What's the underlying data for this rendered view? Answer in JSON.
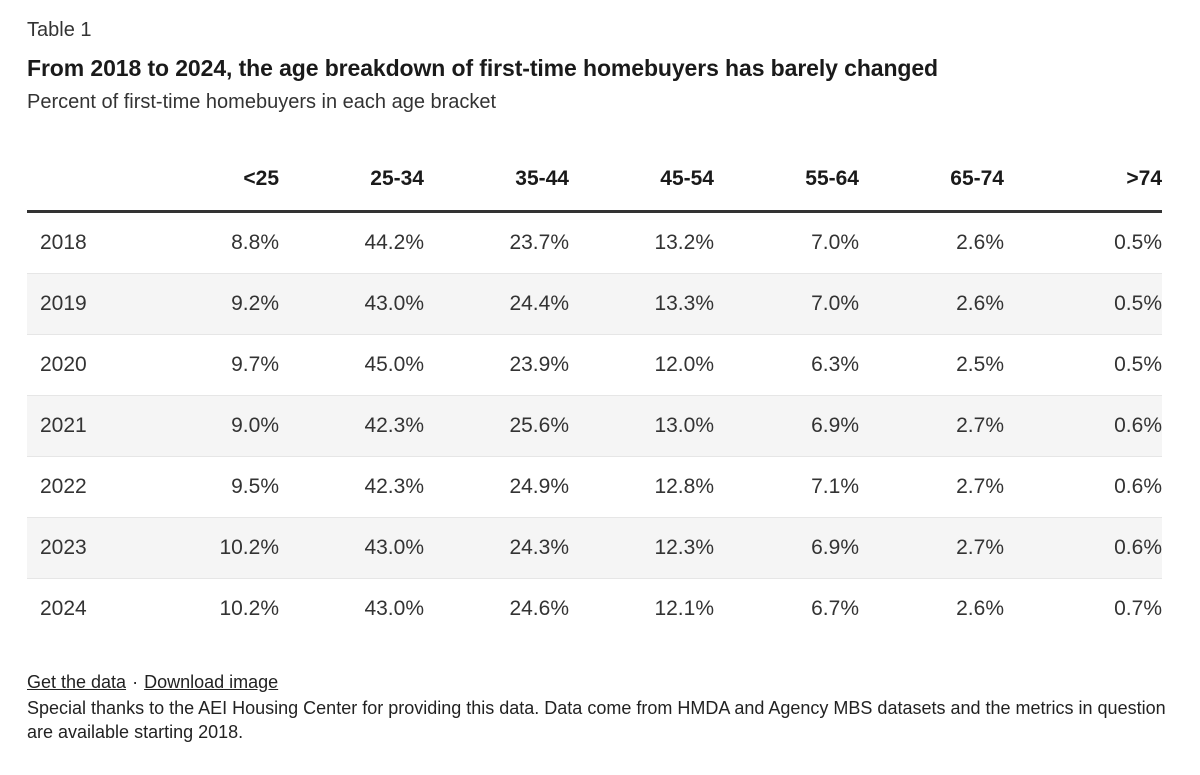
{
  "header": {
    "kicker": "Table 1",
    "title": "From 2018 to 2024, the age breakdown of first-time homebuyers has barely changed",
    "subtitle": "Percent of first-time homebuyers in each age bracket"
  },
  "chart_data": {
    "type": "table",
    "title": "From 2018 to 2024, the age breakdown of first-time homebuyers has barely changed",
    "subtitle": "Percent of first-time homebuyers in each age bracket",
    "columns": [
      "",
      "<25",
      "25-34",
      "35-44",
      "45-54",
      "55-64",
      "65-74",
      ">74"
    ],
    "rows": [
      [
        "2018",
        "8.8%",
        "44.2%",
        "23.7%",
        "13.2%",
        "7.0%",
        "2.6%",
        "0.5%"
      ],
      [
        "2019",
        "9.2%",
        "43.0%",
        "24.4%",
        "13.3%",
        "7.0%",
        "2.6%",
        "0.5%"
      ],
      [
        "2020",
        "9.7%",
        "45.0%",
        "23.9%",
        "12.0%",
        "6.3%",
        "2.5%",
        "0.5%"
      ],
      [
        "2021",
        "9.0%",
        "42.3%",
        "25.6%",
        "13.0%",
        "6.9%",
        "2.7%",
        "0.6%"
      ],
      [
        "2022",
        "9.5%",
        "42.3%",
        "24.9%",
        "12.8%",
        "7.1%",
        "2.7%",
        "0.6%"
      ],
      [
        "2023",
        "10.2%",
        "43.0%",
        "24.3%",
        "12.3%",
        "6.9%",
        "2.7%",
        "0.6%"
      ],
      [
        "2024",
        "10.2%",
        "43.0%",
        "24.6%",
        "12.1%",
        "6.7%",
        "2.6%",
        "0.7%"
      ]
    ]
  },
  "footer": {
    "get_data_label": "Get the data",
    "separator": "·",
    "download_label": "Download image",
    "note": "Special thanks to the AEI Housing Center for providing this data. Data come from HMDA and Agency MBS datasets and the metrics in question are available starting 2018."
  }
}
